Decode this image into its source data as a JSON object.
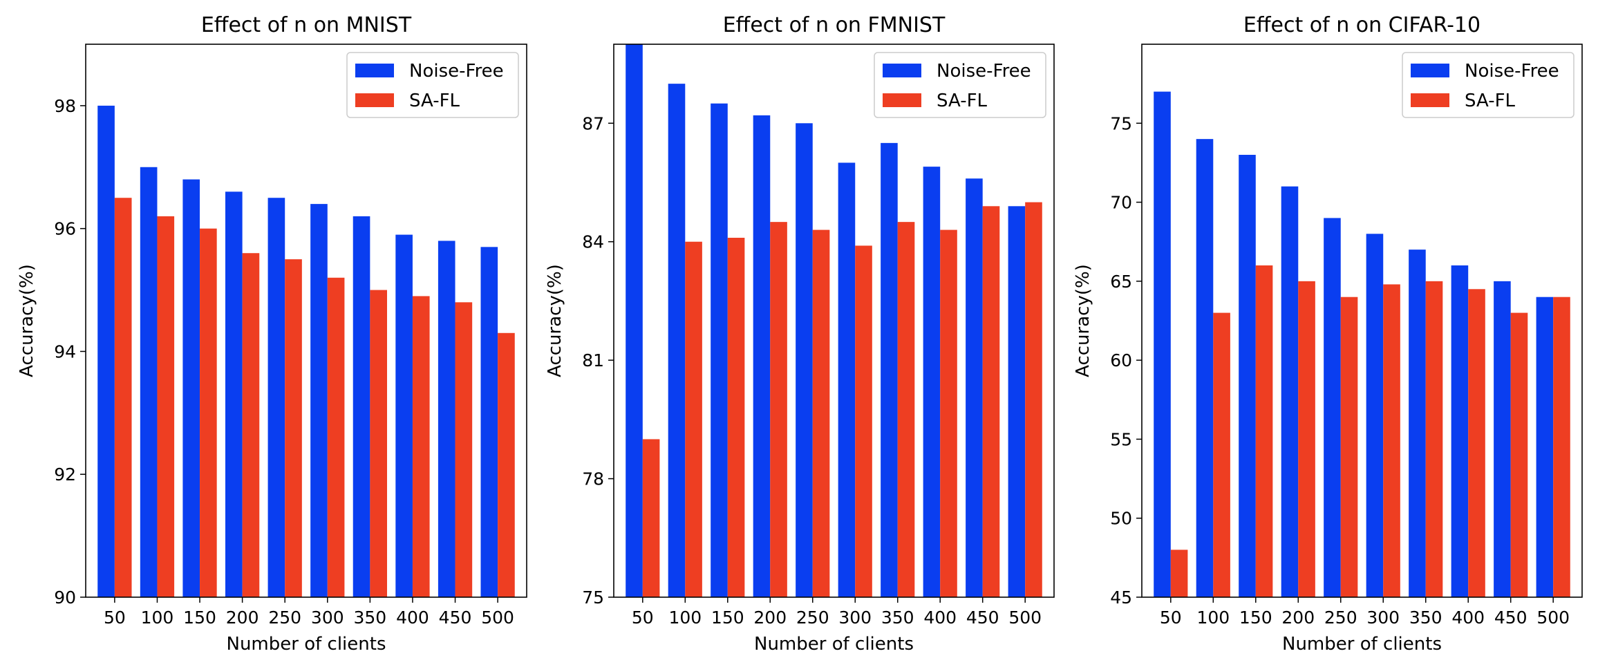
{
  "colors": {
    "noise_free": "#0a3ef0",
    "sa_fl": "#ee3e22"
  },
  "chart_data": [
    {
      "type": "bar",
      "title": "Effect of n on MNIST",
      "xlabel": "Number of clients",
      "ylabel": "Accuracy(%)",
      "categories": [
        "50",
        "100",
        "150",
        "200",
        "250",
        "300",
        "350",
        "400",
        "450",
        "500"
      ],
      "ylim": [
        90,
        99
      ],
      "yticks": [
        90,
        92,
        94,
        96,
        98
      ],
      "legend": "top-right",
      "grid": false,
      "series": [
        {
          "name": "Noise-Free",
          "values": [
            98.0,
            97.0,
            96.8,
            96.6,
            96.5,
            96.4,
            96.2,
            95.9,
            95.8,
            95.7
          ]
        },
        {
          "name": "SA-FL",
          "values": [
            96.5,
            96.2,
            96.0,
            95.6,
            95.5,
            95.2,
            95.0,
            94.9,
            94.8,
            94.3
          ]
        }
      ]
    },
    {
      "type": "bar",
      "title": "Effect of n on FMNIST",
      "xlabel": "Number of clients",
      "ylabel": "Accuracy(%)",
      "categories": [
        "50",
        "100",
        "150",
        "200",
        "250",
        "300",
        "350",
        "400",
        "450",
        "500"
      ],
      "ylim": [
        75,
        89
      ],
      "yticks": [
        75,
        78,
        81,
        84,
        87
      ],
      "legend": "top-right",
      "grid": false,
      "series": [
        {
          "name": "Noise-Free",
          "values": [
            89.0,
            88.0,
            87.5,
            87.2,
            87.0,
            86.0,
            86.5,
            85.9,
            85.6,
            84.9
          ]
        },
        {
          "name": "SA-FL",
          "values": [
            79.0,
            84.0,
            84.1,
            84.5,
            84.3,
            83.9,
            84.5,
            84.3,
            84.9,
            85.0
          ]
        }
      ]
    },
    {
      "type": "bar",
      "title": "Effect of n on CIFAR-10",
      "xlabel": "Number of clients",
      "ylabel": "Accuracy(%)",
      "categories": [
        "50",
        "100",
        "150",
        "200",
        "250",
        "300",
        "350",
        "400",
        "450",
        "500"
      ],
      "ylim": [
        45,
        80
      ],
      "yticks": [
        45,
        50,
        55,
        60,
        65,
        70,
        75
      ],
      "legend": "top-right",
      "grid": false,
      "series": [
        {
          "name": "Noise-Free",
          "values": [
            77.0,
            74.0,
            73.0,
            71.0,
            69.0,
            68.0,
            67.0,
            66.0,
            65.0,
            64.0
          ]
        },
        {
          "name": "SA-FL",
          "values": [
            48.0,
            63.0,
            66.0,
            65.0,
            64.0,
            64.8,
            65.0,
            64.5,
            63.0,
            64.0
          ]
        }
      ]
    }
  ]
}
